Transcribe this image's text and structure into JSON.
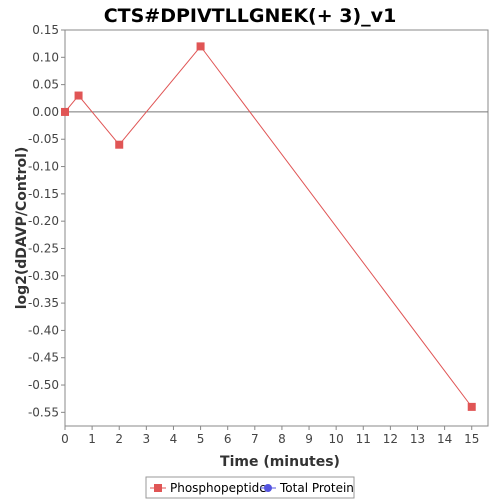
{
  "chart_data": {
    "type": "line",
    "title": "CTS#DPIVTLLGNEK(+ 3)_v1",
    "xlabel": "Time (minutes)",
    "ylabel": "log2(dDAVP/Control)",
    "xlim": [
      0,
      15.6
    ],
    "ylim": [
      -0.575,
      0.15
    ],
    "x_ticks": [
      0,
      1,
      2,
      3,
      4,
      5,
      6,
      7,
      8,
      9,
      10,
      11,
      12,
      13,
      14,
      15
    ],
    "y_ticks": [
      0.15,
      0.1,
      0.05,
      0.0,
      -0.05,
      -0.1,
      -0.15,
      -0.2,
      -0.25,
      -0.3,
      -0.35,
      -0.4,
      -0.45,
      -0.5,
      -0.55
    ],
    "grid": false,
    "zero_line": true,
    "legend_position": "bottom",
    "series": [
      {
        "name": "Phosphopeptide",
        "color": "#e05555",
        "marker": "square",
        "x": [
          0,
          0.5,
          2,
          5,
          15
        ],
        "y": [
          0.0,
          0.03,
          -0.06,
          0.12,
          -0.54
        ]
      },
      {
        "name": "Total Protein",
        "color": "#5555e0",
        "marker": "circle",
        "x": [],
        "y": []
      }
    ]
  }
}
